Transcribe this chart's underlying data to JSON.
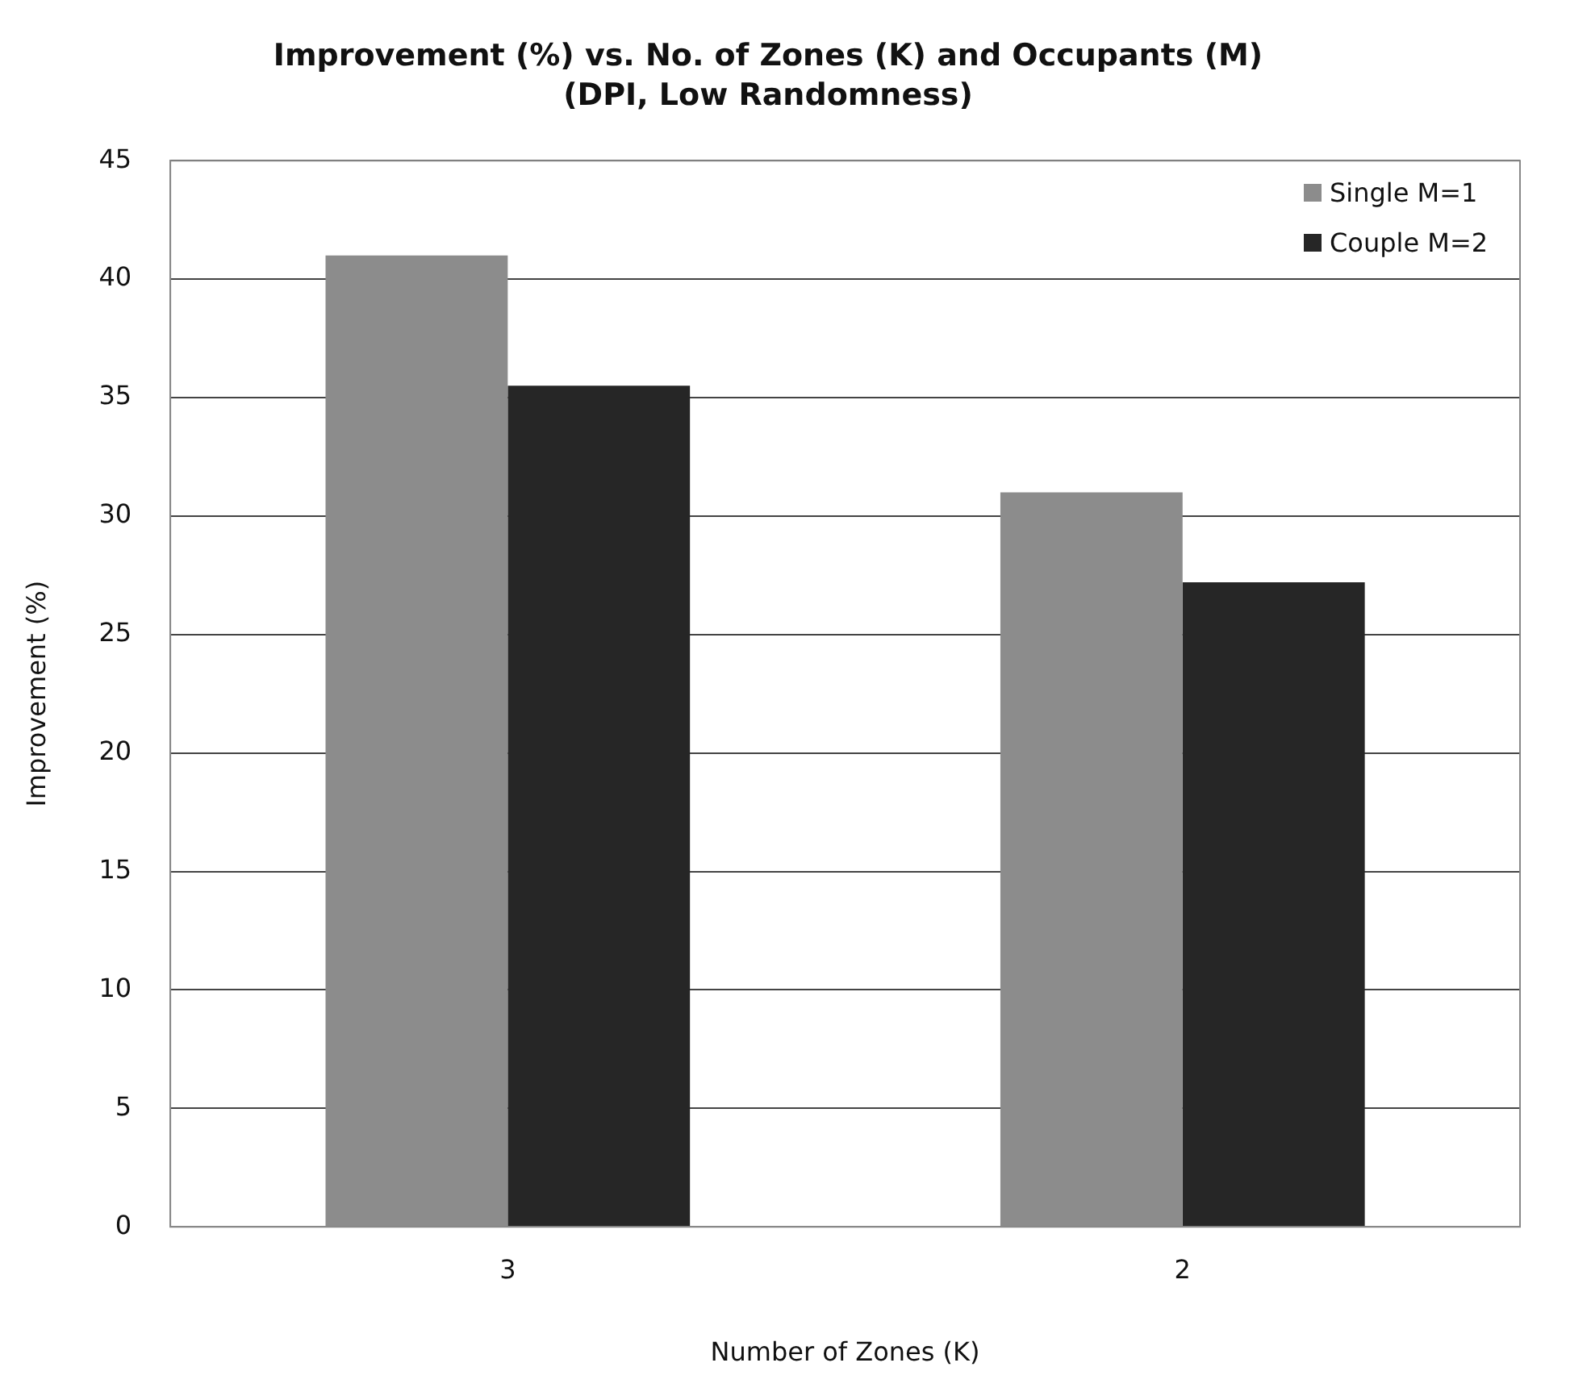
{
  "chart_data": {
    "type": "bar",
    "title": "Improvement (%) vs. No. of Zones (K) and Occupants (M)",
    "subtitle": "(DPI, Low Randomness)",
    "xlabel": "Number of Zones (K)",
    "ylabel": "Improvement (%)",
    "categories": [
      "3",
      "2"
    ],
    "series": [
      {
        "name": "Single M=1",
        "color": "#8c8c8c",
        "values": [
          41,
          31
        ]
      },
      {
        "name": "Couple M=2",
        "color": "#262626",
        "values": [
          35.5,
          27.2
        ]
      }
    ],
    "ylim": [
      0,
      45
    ],
    "yticks": [
      0,
      5,
      10,
      15,
      20,
      25,
      30,
      35,
      40,
      45
    ],
    "grid": "y",
    "legend": "top right"
  }
}
